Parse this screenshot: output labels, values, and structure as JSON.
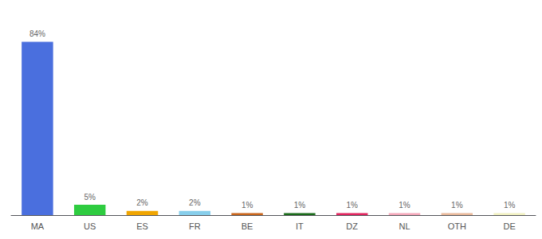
{
  "chart_data": {
    "type": "bar",
    "categories": [
      "MA",
      "US",
      "ES",
      "FR",
      "BE",
      "IT",
      "DZ",
      "NL",
      "OTH",
      "DE"
    ],
    "values": [
      84,
      5,
      2,
      2,
      1,
      1,
      1,
      1,
      1,
      1
    ],
    "value_labels": [
      "84%",
      "5%",
      "2%",
      "2%",
      "1%",
      "1%",
      "1%",
      "1%",
      "1%",
      "1%"
    ],
    "data_labels": true,
    "colors": [
      "#4a6fde",
      "#2ecc40",
      "#f0a500",
      "#87ceeb",
      "#c8651b",
      "#1a6b1a",
      "#e0245e",
      "#f4a7b9",
      "#e8b89a",
      "#f0f0c0"
    ],
    "ylim": [
      0,
      95
    ],
    "grid": false,
    "tick_labels": "x"
  }
}
